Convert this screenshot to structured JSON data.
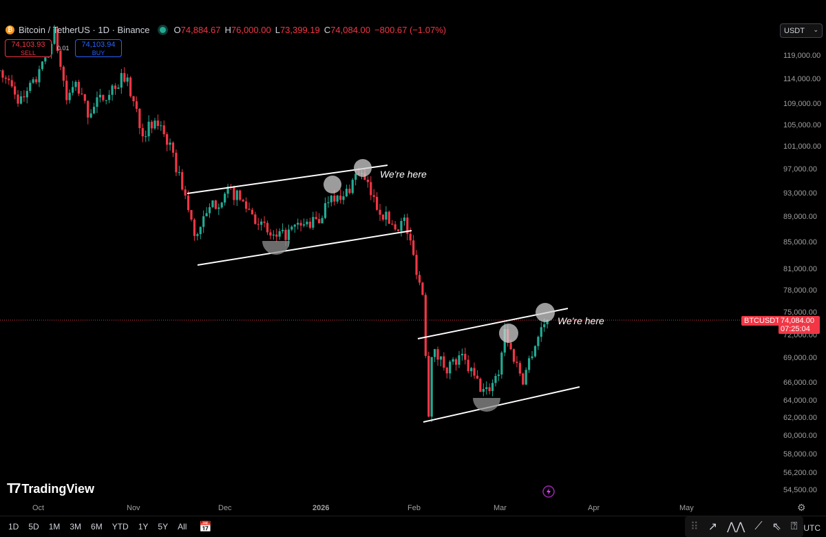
{
  "header": {
    "symbol": "Bitcoin / TetherUS · 1D · Binance",
    "o_label": "O",
    "o": "74,884.67",
    "h_label": "H",
    "h": "76,000.00",
    "l_label": "L",
    "l": "73,399.19",
    "c_label": "C",
    "c": "74,084.00",
    "change": "−800.67 (−1.07%)"
  },
  "trade": {
    "sell_price": "74,103.93",
    "sell_label": "SELL",
    "buy_price": "74,103.94",
    "buy_label": "BUY",
    "spread": "0.01"
  },
  "currency": "USDT",
  "price_axis": [
    "119,000.00",
    "114,000.00",
    "109,000.00",
    "105,000.00",
    "101,000.00",
    "97,000.00",
    "93,000.00",
    "89,000.00",
    "85,000.00",
    "81,000.00",
    "78,000.00",
    "75,000.00",
    "72,000.00",
    "69,000.00",
    "66,000.00",
    "64,000.00",
    "62,000.00",
    "60,000.00",
    "58,000.00",
    "56,200.00",
    "54,500.00"
  ],
  "time_axis": [
    "Oct",
    "Nov",
    "Dec",
    "2026",
    "Feb",
    "Mar",
    "Apr",
    "May"
  ],
  "price_tag": {
    "symbol": "BTCUSDT",
    "price": "74,084.00",
    "countdown": "07:25:04"
  },
  "annotations": [
    "We're here",
    "We're here"
  ],
  "brand": "TradingView",
  "ranges": [
    "1D",
    "5D",
    "1M",
    "3M",
    "6M",
    "YTD",
    "1Y",
    "5Y",
    "All"
  ],
  "timezone": "UTC",
  "colors": {
    "up": "#22ab94",
    "down": "#f23645",
    "buy": "#2962ff"
  },
  "chart_data": {
    "type": "candlestick",
    "scale": "log",
    "ylim": [
      54500,
      121000
    ],
    "close_path": [
      [
        "2025-09-18",
        116000
      ],
      [
        "2025-09-25",
        109500
      ],
      [
        "2025-10-01",
        115000
      ],
      [
        "2025-10-06",
        124000
      ],
      [
        "2025-10-10",
        110000
      ],
      [
        "2025-10-13",
        113000
      ],
      [
        "2025-10-17",
        107500
      ],
      [
        "2025-10-27",
        113500
      ],
      [
        "2025-10-29",
        115000
      ],
      [
        "2025-11-04",
        104000
      ],
      [
        "2025-11-10",
        105500
      ],
      [
        "2025-11-14",
        99000
      ],
      [
        "2025-11-17",
        94500
      ],
      [
        "2025-11-21",
        86000
      ],
      [
        "2025-11-27",
        91000
      ],
      [
        "2025-12-03",
        93500
      ],
      [
        "2025-12-08",
        91000
      ],
      [
        "2025-12-15",
        86500
      ],
      [
        "2025-12-18",
        85500
      ],
      [
        "2025-12-25",
        87500
      ],
      [
        "2026-01-01",
        88500
      ],
      [
        "2026-01-05",
        93500
      ],
      [
        "2026-01-08",
        91500
      ],
      [
        "2026-01-14",
        97000
      ],
      [
        "2026-01-20",
        91000
      ],
      [
        "2026-01-23",
        89000
      ],
      [
        "2026-01-26",
        87500
      ],
      [
        "2026-01-29",
        88500
      ],
      [
        "2026-02-01",
        83000
      ],
      [
        "2026-02-04",
        77500
      ],
      [
        "2026-02-06",
        62700
      ],
      [
        "2026-02-07",
        70000
      ],
      [
        "2026-02-12",
        68000
      ],
      [
        "2026-02-17",
        69000
      ],
      [
        "2026-02-23",
        65500
      ],
      [
        "2026-02-25",
        65000
      ],
      [
        "2026-03-01",
        67500
      ],
      [
        "2026-03-03",
        72800
      ],
      [
        "2026-03-05",
        70000
      ],
      [
        "2026-03-09",
        66500
      ],
      [
        "2026-03-12",
        70000
      ],
      [
        "2026-03-15",
        73000
      ],
      [
        "2026-03-17",
        74084
      ]
    ]
  }
}
